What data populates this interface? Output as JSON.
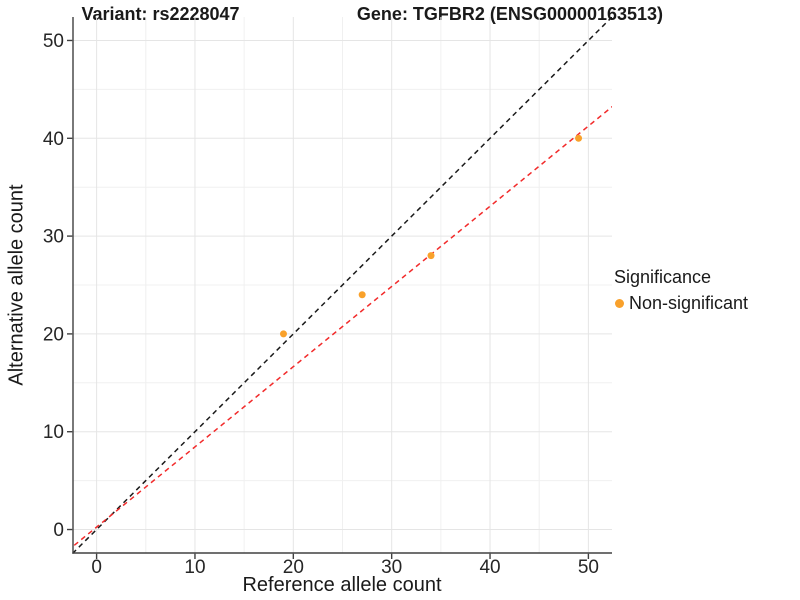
{
  "chart_data": {
    "type": "scatter",
    "title_left": "Variant: rs2228047",
    "title_right": "Gene: TGFBR2 (ENSG00000163513)",
    "xlabel": "Reference allele count",
    "ylabel": "Alternative allele count",
    "xlim": [
      -2.4,
      52.4
    ],
    "ylim": [
      -2.4,
      52.4
    ],
    "xticks": [
      0,
      10,
      20,
      30,
      40,
      50
    ],
    "yticks": [
      0,
      10,
      20,
      30,
      40,
      50
    ],
    "minor_xticks": [
      5,
      15,
      25,
      35,
      45
    ],
    "minor_yticks": [
      5,
      15,
      25,
      35,
      45
    ],
    "grid": true,
    "legend_position": "right",
    "points": [
      {
        "x": 19,
        "y": 20,
        "series": "Non-significant"
      },
      {
        "x": 27,
        "y": 24,
        "series": "Non-significant"
      },
      {
        "x": 34,
        "y": 28,
        "series": "Non-significant"
      },
      {
        "x": 49,
        "y": 40,
        "series": "Non-significant"
      }
    ],
    "point_color": "#F9A12B",
    "lines": [
      {
        "name": "identity-line",
        "slope": 1,
        "intercept": 0,
        "color": "#1A1A1A",
        "style": "dashed"
      },
      {
        "name": "fit-line",
        "slope": 0.82,
        "intercept": 0.25,
        "color": "#F22B2B",
        "style": "dashed"
      }
    ],
    "legend": {
      "title": "Significance",
      "items": [
        {
          "label": "Non-significant",
          "color": "#F9A12B"
        }
      ]
    }
  }
}
